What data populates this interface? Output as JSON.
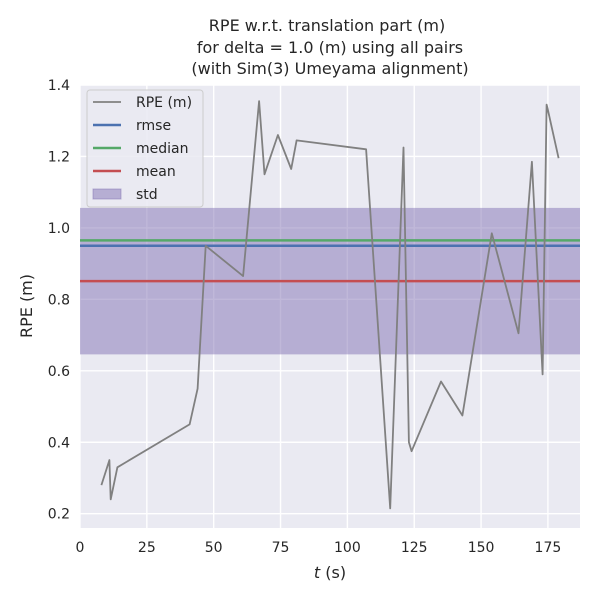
{
  "chart_data": {
    "type": "line",
    "title": [
      "RPE w.r.t. translation part (m)",
      "for delta = 1.0 (m) using all pairs",
      "(with Sim(3) Umeyama alignment)"
    ],
    "xlabel_italic": "t",
    "xlabel_rest": " (s)",
    "ylabel": "RPE (m)",
    "xlim": [
      0,
      187
    ],
    "ylim": [
      0.16,
      1.4
    ],
    "xticks": [
      0,
      25,
      50,
      75,
      100,
      125,
      150,
      175
    ],
    "yticks": [
      0.2,
      0.4,
      0.6,
      0.8,
      1.0,
      1.2,
      1.4
    ],
    "ytick_labels": [
      "0.2",
      "0.4",
      "0.6",
      "0.8",
      "1.0",
      "1.2",
      "1.4"
    ],
    "series": [
      {
        "name": "RPE (m)",
        "color": "#808080",
        "x": [
          8,
          11,
          11.5,
          14,
          41,
          44,
          47,
          61,
          67,
          69,
          74,
          79,
          81,
          107,
          116,
          121,
          123,
          124,
          135,
          143,
          154,
          164,
          169,
          173,
          174.5,
          175,
          179
        ],
        "y": [
          0.28,
          0.35,
          0.24,
          0.33,
          0.45,
          0.55,
          0.95,
          0.865,
          1.355,
          1.15,
          1.26,
          1.165,
          1.245,
          1.22,
          0.215,
          1.225,
          0.4,
          0.375,
          0.57,
          0.475,
          0.985,
          0.705,
          1.185,
          0.59,
          1.345,
          1.33,
          1.195
        ]
      }
    ],
    "stats": {
      "rmse": 0.95,
      "median": 0.965,
      "mean": 0.851,
      "std": 0.205
    },
    "legend": [
      {
        "label": "RPE (m)",
        "kind": "line",
        "color": "#808080"
      },
      {
        "label": "rmse",
        "kind": "line",
        "color": "#4c72b0"
      },
      {
        "label": "median",
        "kind": "line",
        "color": "#55a868"
      },
      {
        "label": "mean",
        "kind": "line",
        "color": "#c44e52"
      },
      {
        "label": "std",
        "kind": "patch",
        "color": "#8172b3"
      }
    ],
    "legend_position": "top-left",
    "grid": true,
    "background": "#eaeaf2"
  }
}
